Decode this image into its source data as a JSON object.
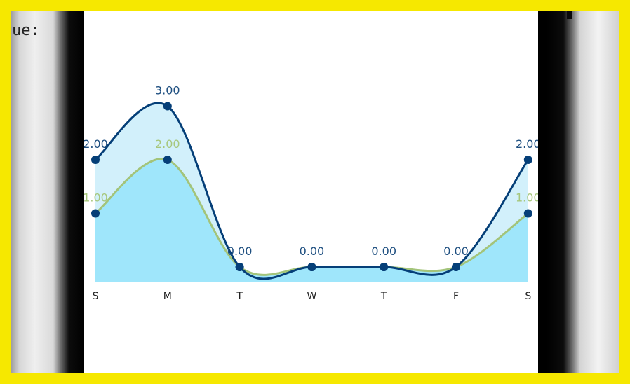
{
  "overlay_text": "ue:",
  "chart_data": {
    "type": "area",
    "categories": [
      "S",
      "M",
      "T",
      "W",
      "T",
      "F",
      "S"
    ],
    "ylim": [
      0,
      3
    ],
    "series": [
      {
        "values": [
          2,
          3,
          0,
          0,
          0,
          0,
          2
        ],
        "fill": "#d2f0fb",
        "line": "#053f78",
        "label_color": "#1e4f80"
      },
      {
        "values": [
          1,
          2,
          0,
          0,
          0,
          0,
          1
        ],
        "fill": "#9fe6fb",
        "line": "#a3c47a",
        "label_color": "#a7c77d"
      }
    ],
    "marker_color": "#053f78",
    "data_labels": [
      [
        "2.00",
        "3.00",
        "0.00",
        "0.00",
        "0.00",
        "0.00",
        "2.00"
      ],
      [
        "1.00",
        "2.00",
        "",
        "",
        "",
        "",
        "1.00"
      ]
    ]
  }
}
